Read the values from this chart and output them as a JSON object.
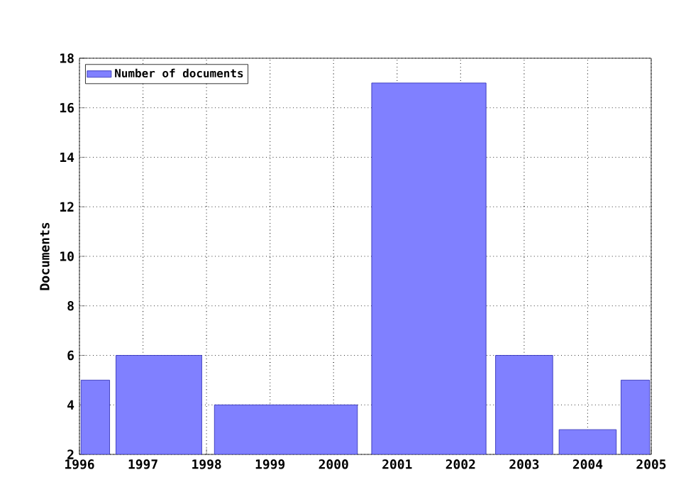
{
  "chart_data": {
    "type": "histogram",
    "ylabel": "Documents",
    "bins": [
      1996,
      1996.5,
      1998,
      2000.5,
      2002.5,
      2003.5,
      2004.5,
      2005
    ],
    "series": [
      {
        "name": "Number of documents",
        "color": "#8080ff",
        "values": [
          5,
          6,
          4,
          17,
          6,
          3,
          5
        ]
      }
    ],
    "xlim": [
      1996,
      2005
    ],
    "xticks": [
      1996,
      1997,
      1998,
      1999,
      2000,
      2001,
      2002,
      2003,
      2004,
      2005
    ],
    "ylim": [
      2,
      18
    ],
    "yticks": [
      2,
      4,
      6,
      8,
      10,
      12,
      14,
      16,
      18
    ],
    "grid": true,
    "legend": "top left"
  }
}
